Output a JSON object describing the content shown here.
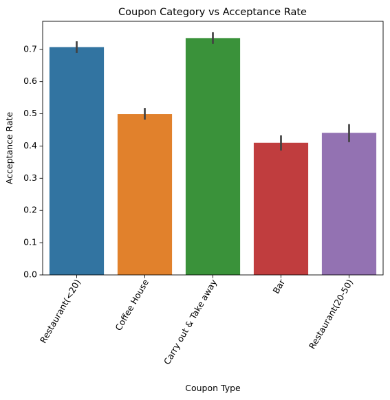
{
  "chart_data": {
    "type": "bar",
    "title": "Coupon Category vs Acceptance Rate",
    "xlabel": "Coupon Type",
    "ylabel": "Acceptance Rate",
    "categories": [
      "Restaurant(<20)",
      "Coffee House",
      "Carry out & Take away",
      "Bar",
      "Restaurant(20-50)"
    ],
    "values": [
      0.707,
      0.499,
      0.735,
      0.41,
      0.441
    ],
    "error_low": [
      0.689,
      0.482,
      0.717,
      0.386,
      0.412
    ],
    "error_high": [
      0.725,
      0.518,
      0.753,
      0.433,
      0.468
    ],
    "colors": [
      "#3274a1",
      "#e1812c",
      "#3a923a",
      "#c03d3e",
      "#9372b2"
    ],
    "ylim": [
      0,
      0.787
    ],
    "yticks": [
      0.0,
      0.1,
      0.2,
      0.3,
      0.4,
      0.5,
      0.6,
      0.7
    ],
    "ytick_labels": [
      "0.0",
      "0.1",
      "0.2",
      "0.3",
      "0.4",
      "0.5",
      "0.6",
      "0.7"
    ],
    "xtick_rotation": 60,
    "grid": false,
    "legend": "none"
  }
}
